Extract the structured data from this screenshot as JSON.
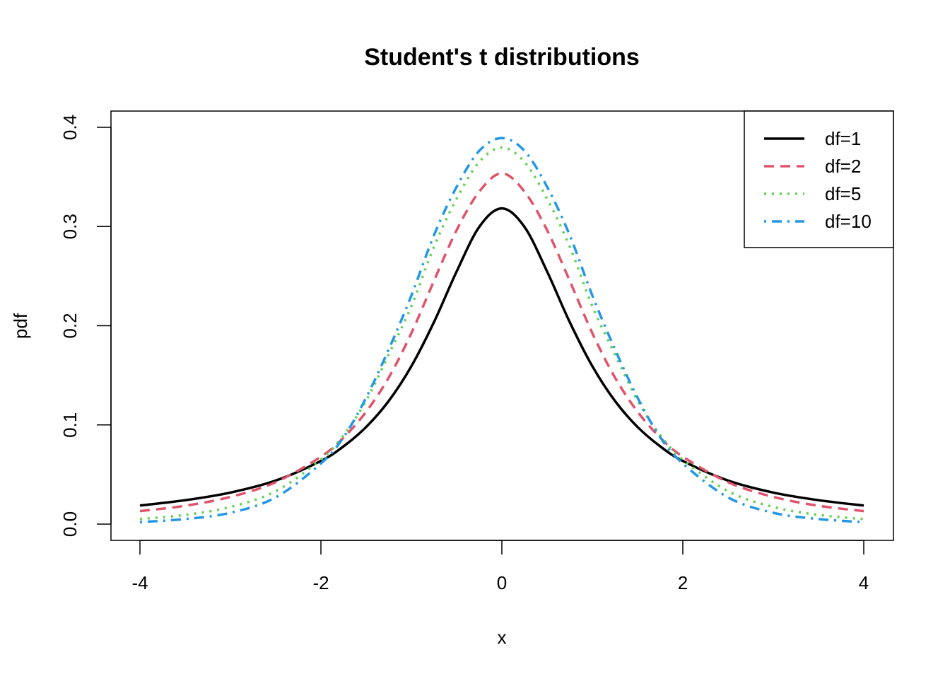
{
  "chart_data": {
    "type": "line",
    "title": "Student's t distributions",
    "xlabel": "x",
    "ylabel": "pdf",
    "xlim": [
      -4,
      4
    ],
    "ylim": [
      0,
      0.4
    ],
    "x_ticks": [
      "-4",
      "-2",
      "0",
      "2",
      "4"
    ],
    "y_ticks": [
      "0.0",
      "0.1",
      "0.2",
      "0.3",
      "0.4"
    ],
    "grid": false,
    "legend_position": "top-right",
    "x": [
      -4.0,
      -3.5,
      -3.0,
      -2.5,
      -2.0,
      -1.75,
      -1.5,
      -1.25,
      -1.0,
      -0.75,
      -0.5,
      -0.25,
      0.0,
      0.25,
      0.5,
      0.75,
      1.0,
      1.25,
      1.5,
      1.75,
      2.0,
      2.5,
      3.0,
      3.5,
      4.0
    ],
    "series": [
      {
        "name": "df=1",
        "color": "#000000",
        "dash": "solid",
        "values": [
          0.0187,
          0.0241,
          0.0318,
          0.0439,
          0.0637,
          0.0784,
          0.0979,
          0.1242,
          0.1592,
          0.2037,
          0.2546,
          0.2996,
          0.3183,
          0.2996,
          0.2546,
          0.2037,
          0.1592,
          0.1242,
          0.0979,
          0.0784,
          0.0637,
          0.0439,
          0.0318,
          0.0241,
          0.0187
        ]
      },
      {
        "name": "df=2",
        "color": "#DF536B",
        "dash": "dashed",
        "values": [
          0.0131,
          0.0185,
          0.0274,
          0.0422,
          0.068,
          0.0872,
          0.1133,
          0.1478,
          0.1925,
          0.2453,
          0.2963,
          0.3352,
          0.3536,
          0.3352,
          0.2963,
          0.2453,
          0.1925,
          0.1478,
          0.1133,
          0.0872,
          0.068,
          0.0422,
          0.0274,
          0.0185,
          0.0131
        ]
      },
      {
        "name": "df=5",
        "color": "#61D04F",
        "dash": "dotted",
        "values": [
          0.0051,
          0.0093,
          0.0173,
          0.0332,
          0.0651,
          0.0896,
          0.1245,
          0.1711,
          0.2197,
          0.2797,
          0.3279,
          0.3651,
          0.3796,
          0.3651,
          0.3279,
          0.2797,
          0.2197,
          0.1711,
          0.1245,
          0.0896,
          0.0651,
          0.0332,
          0.0173,
          0.0093,
          0.0051
        ]
      },
      {
        "name": "df=10",
        "color": "#2297E6",
        "dash": "dotdash",
        "values": [
          0.002,
          0.0051,
          0.0114,
          0.0269,
          0.0611,
          0.0876,
          0.1274,
          0.1763,
          0.2304,
          0.2913,
          0.34,
          0.3763,
          0.3891,
          0.3763,
          0.34,
          0.2913,
          0.2304,
          0.1763,
          0.1274,
          0.0876,
          0.0611,
          0.0269,
          0.0114,
          0.0051,
          0.002
        ]
      }
    ]
  }
}
